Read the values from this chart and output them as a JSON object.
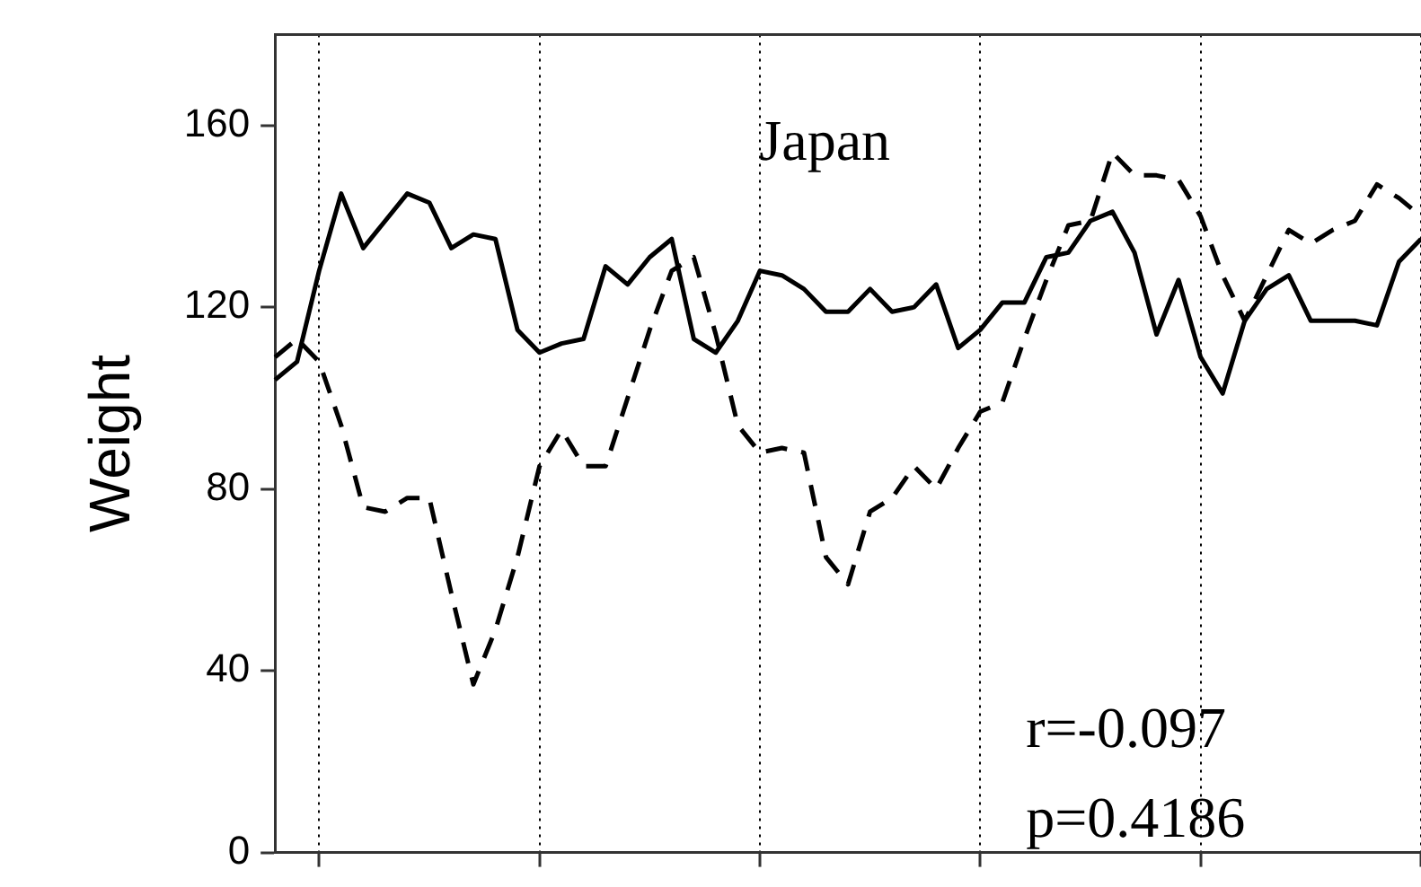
{
  "chart_data": {
    "type": "line",
    "ylabel": "Weight",
    "annotations": [
      "Japan",
      "r=-0.097",
      "p=0.4186"
    ],
    "categories": [
      null,
      null,
      null,
      null,
      null,
      null,
      null,
      null,
      null,
      null,
      null,
      null,
      null,
      null,
      null,
      null,
      null,
      null,
      null,
      null,
      null,
      null,
      null,
      null,
      null,
      null,
      null,
      null,
      null,
      null,
      null,
      null,
      null,
      null,
      null,
      null,
      null,
      null,
      null,
      null,
      null,
      null,
      null,
      null,
      null,
      null,
      null,
      null,
      null,
      null,
      null,
      null,
      null
    ],
    "series": [
      {
        "color": "#000000",
        "line_style": "solid",
        "values": [
          104,
          108,
          128,
          145,
          133,
          139,
          145,
          143,
          133,
          136,
          135,
          115,
          110,
          112,
          113,
          129,
          125,
          131,
          135,
          113,
          110,
          117,
          128,
          127,
          124,
          119,
          119,
          124,
          119,
          120,
          125,
          111,
          115,
          121,
          121,
          131,
          132,
          139,
          141,
          132,
          114,
          126,
          109,
          101,
          117,
          124,
          127,
          117,
          117,
          117,
          116,
          130,
          135
        ]
      },
      {
        "color": "#000000",
        "line_style": "dashed",
        "values": [
          109,
          113,
          108,
          94,
          76,
          75,
          78,
          78,
          57,
          37,
          49,
          65,
          85,
          93,
          85,
          85,
          100,
          115,
          128,
          131,
          114,
          94,
          88,
          89,
          88,
          65,
          59,
          75,
          78,
          85,
          80,
          89,
          97,
          99,
          113,
          126,
          138,
          139,
          154,
          149,
          149,
          148,
          140,
          127,
          117,
          127,
          137,
          134,
          137,
          139,
          147,
          144,
          140
        ]
      }
    ],
    "ylim": [
      0,
      180
    ],
    "yticks": [
      0,
      40,
      80,
      120,
      160
    ],
    "grid": "x",
    "tick_labels": "y",
    "legend": false,
    "marker": "none"
  }
}
